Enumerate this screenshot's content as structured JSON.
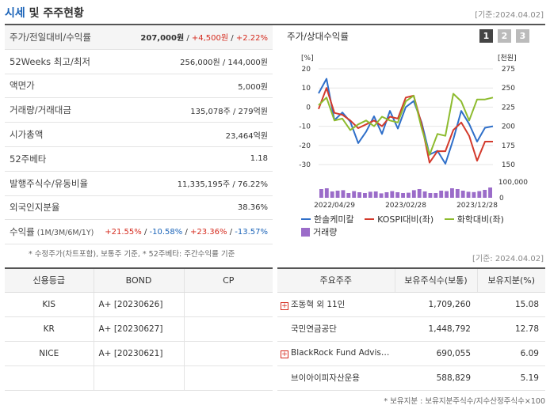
{
  "header": {
    "title_hl": "시세",
    "title_rest": " 및 주주현황",
    "asof": "[기준:2024.04.02]"
  },
  "quote": {
    "rows": [
      {
        "key": "주가/전일대비/수익률",
        "v1": "207,000원",
        "v2": " / ",
        "v3": "+4,500원",
        "v4": " / ",
        "v5": "+2.22%"
      },
      {
        "key": "52Weeks 최고/최저",
        "val": "256,000원 / 144,000원"
      },
      {
        "key": "액면가",
        "val": "5,000원"
      },
      {
        "key": "거래량/거래대금",
        "val": "135,078주 / 279억원"
      },
      {
        "key": "시가총액",
        "val": "23,464억원"
      },
      {
        "key": "52주베타",
        "val": "1.18"
      },
      {
        "key": "발행주식수/유동비율",
        "val": "11,335,195주 / 76.22%"
      },
      {
        "key": "외국인지분율",
        "val": "38.36%"
      },
      {
        "key": "수익률",
        "key_sub": " (1M/3M/6M/1Y)",
        "r1": "+21.55%",
        "r2": "-10.58%",
        "r3": "+23.36%",
        "r4": "-13.57%"
      }
    ],
    "note": "* 수정주가(차트포함), 보통주 기준, * 52주베타: 주간수익률 기준"
  },
  "asof2": "[기준: 2024.04.02]",
  "chart": {
    "title": "주가/상대수익률",
    "tabs": [
      "1",
      "2",
      "3"
    ],
    "left_unit": "[%]",
    "right_unit": "[천원]",
    "legend": [
      "한솔케미칼",
      "KOSPI대비(좌)",
      "화학대비(좌)",
      "거래량"
    ],
    "colors": {
      "stock": "#2f6fc9",
      "kospi": "#d33a2c",
      "chem": "#8dbb2e",
      "volume": "#9b6cc9"
    }
  },
  "chart_data": {
    "type": "line",
    "x_tick_labels": [
      "2022/04/29",
      "2023/02/28",
      "2023/12/28"
    ],
    "left_axis": {
      "label": "[%]",
      "ticks": [
        20,
        10,
        0,
        -10,
        -20,
        -30
      ],
      "ylim": [
        -30,
        20
      ]
    },
    "right_axis": {
      "label": "[천원]",
      "ticks": [
        275,
        250,
        225,
        200,
        175,
        150
      ],
      "ylim": [
        150,
        275
      ]
    },
    "volume_axis": {
      "ticks": [
        "100,000",
        "0"
      ],
      "ylim": [
        0,
        100000
      ]
    },
    "series": [
      {
        "name": "한솔케미칼",
        "axis": "right",
        "values": [
          243,
          262,
          208,
          218,
          206,
          178,
          193,
          213,
          190,
          220,
          197,
          225,
          233,
          205,
          163,
          168,
          151,
          183,
          220,
          203,
          180,
          198,
          200
        ]
      },
      {
        "name": "KOSPI대비(좌)",
        "axis": "left",
        "values": [
          -1,
          10,
          -3,
          -4,
          -7,
          -11,
          -9,
          -7,
          -10,
          -5,
          -6,
          5,
          6,
          -9,
          -29,
          -23,
          -23,
          -12,
          -8,
          -15,
          -28,
          -18,
          -18
        ]
      },
      {
        "name": "화학대비(좌)",
        "axis": "left",
        "values": [
          1,
          5,
          -7,
          -6,
          -12,
          -9,
          -7,
          -10,
          -5,
          -7,
          -8,
          3,
          6,
          -11,
          -25,
          -14,
          -15,
          7,
          3,
          -7,
          4,
          4,
          5
        ]
      },
      {
        "name": "거래량",
        "axis": "volume",
        "type": "bar",
        "values": [
          55000,
          60000,
          40000,
          45000,
          48000,
          30000,
          42000,
          35000,
          30000,
          38000,
          40000,
          28000,
          35000,
          42000,
          35000,
          30000,
          32000,
          48000,
          55000,
          40000,
          30000,
          30000,
          45000,
          42000,
          60000,
          55000,
          45000,
          38000,
          36000,
          42000,
          50000,
          65000
        ]
      }
    ]
  },
  "credit": {
    "headers": [
      "신용등급",
      "BOND",
      "CP"
    ],
    "rows": [
      {
        "agency": "KIS",
        "bond": "A+ [20230626]",
        "cp": ""
      },
      {
        "agency": "KR",
        "bond": "A+ [20230627]",
        "cp": ""
      },
      {
        "agency": "NICE",
        "bond": "A+ [20230621]",
        "cp": ""
      },
      {
        "agency": "",
        "bond": "",
        "cp": ""
      }
    ]
  },
  "holders": {
    "headers": [
      "주요주주",
      "보유주식수(보통)",
      "보유지분(%)"
    ],
    "rows": [
      {
        "name": "조동혁 외 11인",
        "shares": "1,709,260",
        "pct": "15.08",
        "expand": true
      },
      {
        "name": "국민연금공단",
        "shares": "1,448,792",
        "pct": "12.78",
        "expand": false
      },
      {
        "name": "BlackRock Fund Advis…",
        "shares": "690,055",
        "pct": "6.09",
        "expand": true
      },
      {
        "name": "브이아이피자산운용",
        "shares": "588,829",
        "pct": "5.19",
        "expand": false
      }
    ],
    "note": "* 보유지분 : 보유지분주식수/지수산정주식수×100"
  }
}
